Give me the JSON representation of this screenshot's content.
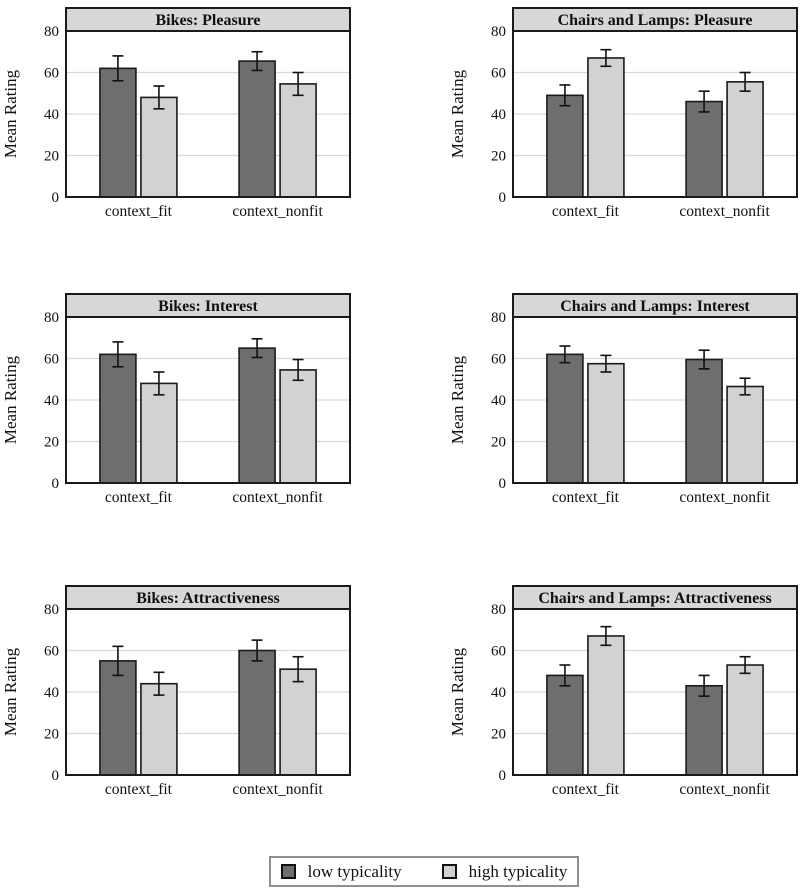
{
  "figure": {
    "ylabel": "Mean Rating",
    "legend": {
      "items": [
        {
          "label": "low typicality",
          "color": "#6e6e6e"
        },
        {
          "label": "high typicality",
          "color": "#d2d2d2"
        }
      ]
    }
  },
  "style": {
    "bar_low": "#6e6e6e",
    "bar_high": "#d2d2d2",
    "band_bg": "#d7d7d7",
    "grid": "#d9d9d9",
    "border": "#1a1a1a",
    "text": "#111111"
  },
  "chart_data": [
    {
      "type": "bar",
      "title": "Bikes: Pleasure",
      "categories": [
        "context_fit",
        "context_nonfit"
      ],
      "series": [
        {
          "name": "low typicality",
          "values": [
            62,
            65.5
          ],
          "errors": [
            6,
            4.5
          ]
        },
        {
          "name": "high typicality",
          "values": [
            48,
            54.5
          ],
          "errors": [
            5.5,
            5.5
          ]
        }
      ],
      "ylabel": "Mean Rating",
      "ylim": [
        0,
        80
      ],
      "yticks": [
        0,
        20,
        40,
        60,
        80
      ],
      "grid": "horizontal",
      "error_bars": true
    },
    {
      "type": "bar",
      "title": "Chairs and Lamps: Pleasure",
      "categories": [
        "context_fit",
        "context_nonfit"
      ],
      "series": [
        {
          "name": "low typicality",
          "values": [
            49,
            46
          ],
          "errors": [
            5,
            5
          ]
        },
        {
          "name": "high typicality",
          "values": [
            67,
            55.5
          ],
          "errors": [
            4,
            4.5
          ]
        }
      ],
      "ylabel": "Mean Rating",
      "ylim": [
        0,
        80
      ],
      "yticks": [
        0,
        20,
        40,
        60,
        80
      ],
      "grid": "horizontal",
      "error_bars": true
    },
    {
      "type": "bar",
      "title": "Bikes: Interest",
      "categories": [
        "context_fit",
        "context_nonfit"
      ],
      "series": [
        {
          "name": "low typicality",
          "values": [
            62,
            65
          ],
          "errors": [
            6,
            4.5
          ]
        },
        {
          "name": "high typicality",
          "values": [
            48,
            54.5
          ],
          "errors": [
            5.5,
            5
          ]
        }
      ],
      "ylabel": "Mean Rating",
      "ylim": [
        0,
        80
      ],
      "yticks": [
        0,
        20,
        40,
        60,
        80
      ],
      "grid": "horizontal",
      "error_bars": true
    },
    {
      "type": "bar",
      "title": "Chairs and Lamps: Interest",
      "categories": [
        "context_fit",
        "context_nonfit"
      ],
      "series": [
        {
          "name": "low typicality",
          "values": [
            62,
            59.5
          ],
          "errors": [
            4,
            4.5
          ]
        },
        {
          "name": "high typicality",
          "values": [
            57.5,
            46.5
          ],
          "errors": [
            4,
            4
          ]
        }
      ],
      "ylabel": "Mean Rating",
      "ylim": [
        0,
        80
      ],
      "yticks": [
        0,
        20,
        40,
        60,
        80
      ],
      "grid": "horizontal",
      "error_bars": true
    },
    {
      "type": "bar",
      "title": "Bikes: Attractiveness",
      "categories": [
        "context_fit",
        "context_nonfit"
      ],
      "series": [
        {
          "name": "low typicality",
          "values": [
            55,
            60
          ],
          "errors": [
            7,
            5
          ]
        },
        {
          "name": "high typicality",
          "values": [
            44,
            51
          ],
          "errors": [
            5.5,
            6
          ]
        }
      ],
      "ylabel": "Mean Rating",
      "ylim": [
        0,
        80
      ],
      "yticks": [
        0,
        20,
        40,
        60,
        80
      ],
      "grid": "horizontal",
      "error_bars": true
    },
    {
      "type": "bar",
      "title": "Chairs and Lamps: Attractiveness",
      "categories": [
        "context_fit",
        "context_nonfit"
      ],
      "series": [
        {
          "name": "low typicality",
          "values": [
            48,
            43
          ],
          "errors": [
            5,
            5
          ]
        },
        {
          "name": "high typicality",
          "values": [
            67,
            53
          ],
          "errors": [
            4.5,
            4
          ]
        }
      ],
      "ylabel": "Mean Rating",
      "ylim": [
        0,
        80
      ],
      "yticks": [
        0,
        20,
        40,
        60,
        80
      ],
      "grid": "horizontal",
      "error_bars": true
    }
  ]
}
